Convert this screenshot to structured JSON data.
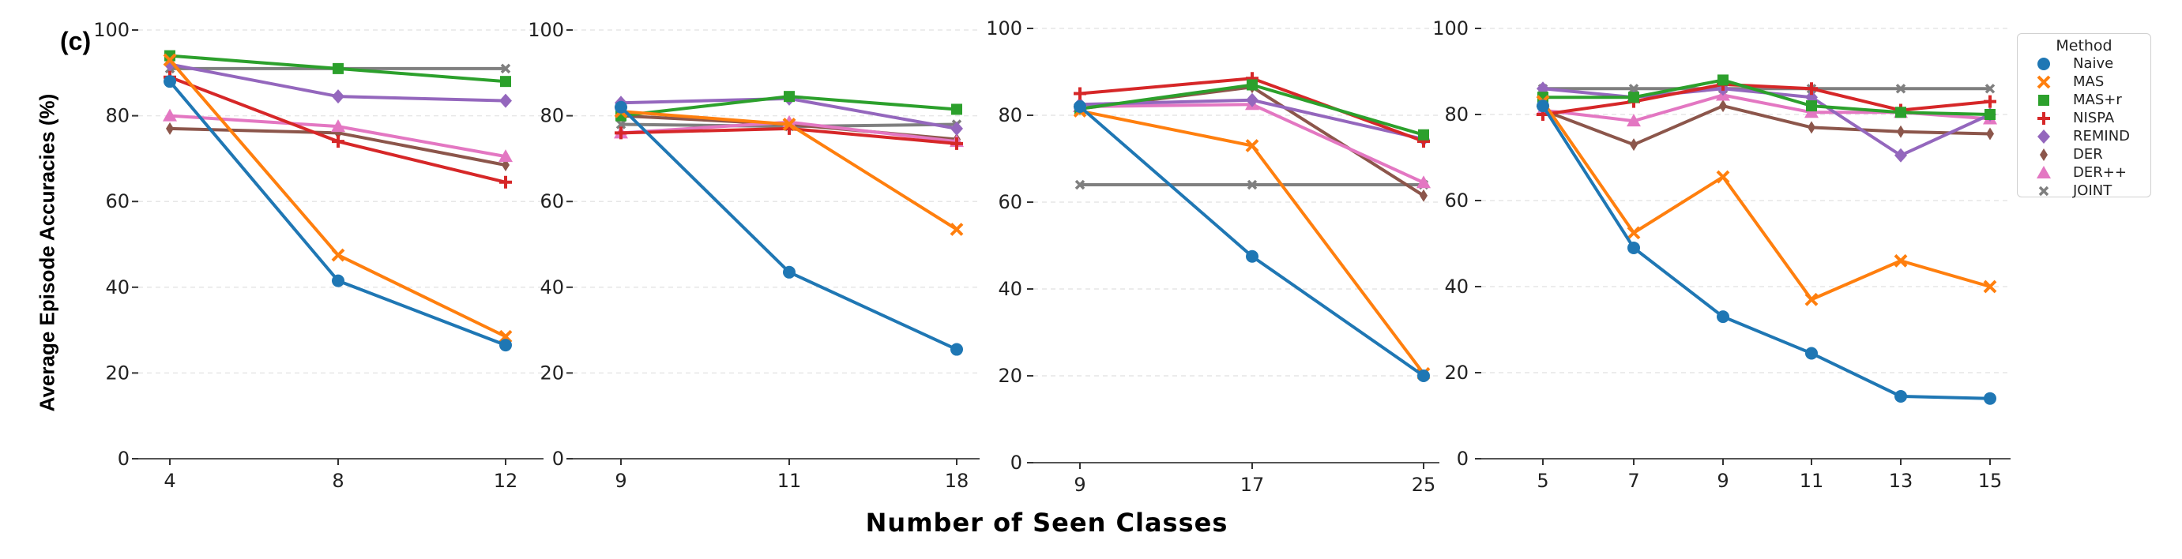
{
  "panel_label": "(c)",
  "ylabel": "Average Episode Accuracies (%)",
  "xlabel": "Number of Seen Classes",
  "legend": {
    "title": "Method",
    "placement": "right, outside plots"
  },
  "colors": {
    "Naive": "#1f77b4",
    "MAS": "#ff7f0e",
    "MAS+r": "#2ca02c",
    "NISPA": "#d62728",
    "REMIND": "#9467bd",
    "DER": "#8c564b",
    "DER++": "#e377c2",
    "JOINT": "#7f7f7f"
  },
  "markers": {
    "Naive": "circle",
    "MAS": "x",
    "MAS+r": "square",
    "NISPA": "plus",
    "REMIND": "diamond",
    "DER": "thin-diamond",
    "DER++": "triangle",
    "JOINT": "x-small"
  },
  "chart_data": [
    {
      "type": "line",
      "x": [
        4,
        8,
        12
      ],
      "xticks": [
        "4",
        "8",
        "12"
      ],
      "ylim": [
        0,
        100
      ],
      "yticks": [
        "0",
        "20",
        "40",
        "60",
        "80",
        "100"
      ],
      "grid": "horizontal dashed",
      "series": [
        {
          "name": "Naive",
          "values": [
            88,
            41.5,
            26.5
          ]
        },
        {
          "name": "MAS",
          "values": [
            93,
            47.5,
            28.5
          ]
        },
        {
          "name": "MAS+r",
          "values": [
            94,
            91,
            88
          ]
        },
        {
          "name": "NISPA",
          "values": [
            89,
            74,
            64.5
          ]
        },
        {
          "name": "REMIND",
          "values": [
            92,
            84.5,
            83.5
          ]
        },
        {
          "name": "DER",
          "values": [
            77,
            76,
            68.5
          ]
        },
        {
          "name": "DER++",
          "values": [
            80,
            77.5,
            70.5
          ]
        },
        {
          "name": "JOINT",
          "values": [
            91,
            91,
            91
          ]
        }
      ]
    },
    {
      "type": "line",
      "x": [
        9,
        11,
        18
      ],
      "xticks": [
        "9",
        "11",
        "18"
      ],
      "ylim": [
        0,
        100
      ],
      "yticks": [
        "0",
        "20",
        "40",
        "60",
        "80",
        "100"
      ],
      "grid": "horizontal dashed",
      "series": [
        {
          "name": "Naive",
          "values": [
            82,
            43.5,
            25.5
          ]
        },
        {
          "name": "MAS",
          "values": [
            81,
            78,
            53.5
          ]
        },
        {
          "name": "MAS+r",
          "values": [
            80,
            84.5,
            81.5
          ]
        },
        {
          "name": "NISPA",
          "values": [
            76,
            77,
            73.5
          ]
        },
        {
          "name": "REMIND",
          "values": [
            83,
            84,
            77
          ]
        },
        {
          "name": "DER",
          "values": [
            80,
            78,
            74.5
          ]
        },
        {
          "name": "DER++",
          "values": [
            76,
            78.5,
            74
          ]
        },
        {
          "name": "JOINT",
          "values": [
            78,
            77.5,
            78
          ]
        }
      ]
    },
    {
      "type": "line",
      "x": [
        9,
        17,
        25
      ],
      "xticks": [
        "9",
        "17",
        "25"
      ],
      "ylim": [
        0,
        100
      ],
      "yticks": [
        "0",
        "20",
        "40",
        "60",
        "80",
        "100"
      ],
      "grid": "horizontal dashed",
      "series": [
        {
          "name": "Naive",
          "values": [
            82,
            47.5,
            20
          ]
        },
        {
          "name": "MAS",
          "values": [
            81,
            73,
            20.5
          ]
        },
        {
          "name": "MAS+r",
          "values": [
            81.5,
            87,
            75.5
          ]
        },
        {
          "name": "NISPA",
          "values": [
            85,
            88.5,
            74
          ]
        },
        {
          "name": "REMIND",
          "values": [
            82.5,
            83.5,
            74.5
          ]
        },
        {
          "name": "DER",
          "values": [
            81.5,
            86.5,
            61.5
          ]
        },
        {
          "name": "DER++",
          "values": [
            82,
            82.5,
            64.5
          ]
        },
        {
          "name": "JOINT",
          "values": [
            64,
            64,
            64
          ]
        }
      ]
    },
    {
      "type": "line",
      "x": [
        5,
        7,
        9,
        11,
        13,
        15
      ],
      "xticks": [
        "5",
        "7",
        "9",
        "11",
        "13",
        "15"
      ],
      "ylim": [
        0,
        100
      ],
      "yticks": [
        "0",
        "20",
        "40",
        "60",
        "80",
        "100"
      ],
      "grid": "horizontal dashed",
      "series": [
        {
          "name": "Naive",
          "values": [
            82,
            49,
            33,
            24.5,
            14.5,
            14
          ]
        },
        {
          "name": "MAS",
          "values": [
            83,
            52.5,
            65.5,
            37,
            46,
            40
          ]
        },
        {
          "name": "MAS+r",
          "values": [
            84,
            84,
            88,
            82,
            80.5,
            80
          ]
        },
        {
          "name": "NISPA",
          "values": [
            80,
            83,
            87,
            86,
            81,
            83
          ]
        },
        {
          "name": "REMIND",
          "values": [
            86,
            84,
            86,
            84,
            70.5,
            80
          ]
        },
        {
          "name": "DER",
          "values": [
            81,
            73,
            82,
            77,
            76,
            75.5
          ]
        },
        {
          "name": "DER++",
          "values": [
            81,
            78.5,
            84.5,
            80.5,
            80.5,
            79
          ]
        },
        {
          "name": "JOINT",
          "values": [
            86,
            86,
            86,
            86,
            86,
            86
          ]
        }
      ]
    }
  ]
}
